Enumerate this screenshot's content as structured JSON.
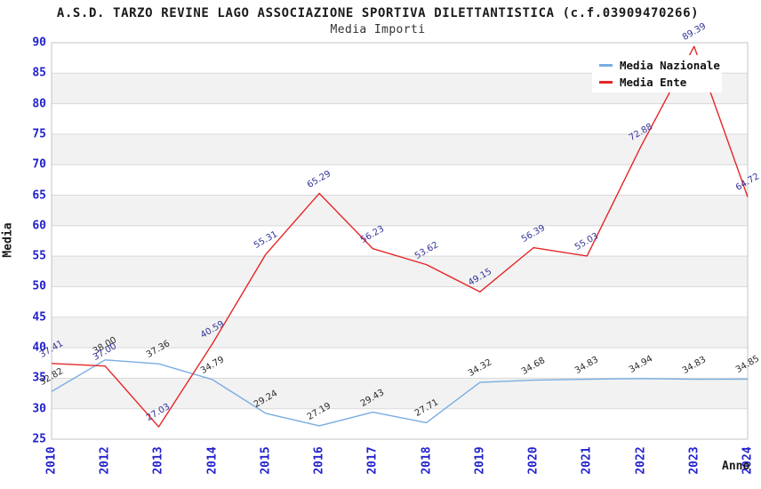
{
  "title": "A.S.D. TARZO REVINE LAGO ASSOCIAZIONE SPORTIVA DILETTANTISTICA (c.f.03909470266)",
  "subtitle": "Media Importi",
  "chart_data": {
    "type": "line",
    "title": "Media Importi",
    "categories": [
      "2010",
      "2012",
      "2013",
      "2014",
      "2015",
      "2016",
      "2017",
      "2018",
      "2019",
      "2020",
      "2021",
      "2022",
      "2023",
      "2024"
    ],
    "series": [
      {
        "name": "Media Nazionale",
        "color": "#7aade3",
        "label_color": "#2b2b2b",
        "values": [
          "32.82",
          "38.00",
          "37.36",
          "34.79",
          "29.24",
          "27.19",
          "29.43",
          "27.71",
          "34.32",
          "34.68",
          "34.83",
          "34.94",
          "34.83",
          "34.85"
        ]
      },
      {
        "name": "Media Ente",
        "color": "#e62626",
        "label_color": "#333399",
        "values": [
          "37.41",
          "37.00",
          "27.03",
          "40.59",
          "55.31",
          "65.29",
          "56.23",
          "53.62",
          "49.15",
          "56.39",
          "55.03",
          "72.88",
          "89.39",
          "64.72"
        ]
      }
    ],
    "xlabel": "Anno",
    "ylabel": "Media",
    "ylim": [
      25,
      90
    ],
    "ytick_step": 5,
    "grid": "horizontal",
    "legend_position": "top-right",
    "tick_color": "#2222cc",
    "band_colors": [
      "#ffffff",
      "#f2f2f2"
    ],
    "gridline_color": "#d9d9d9",
    "border_color": "#c4c4c4"
  }
}
